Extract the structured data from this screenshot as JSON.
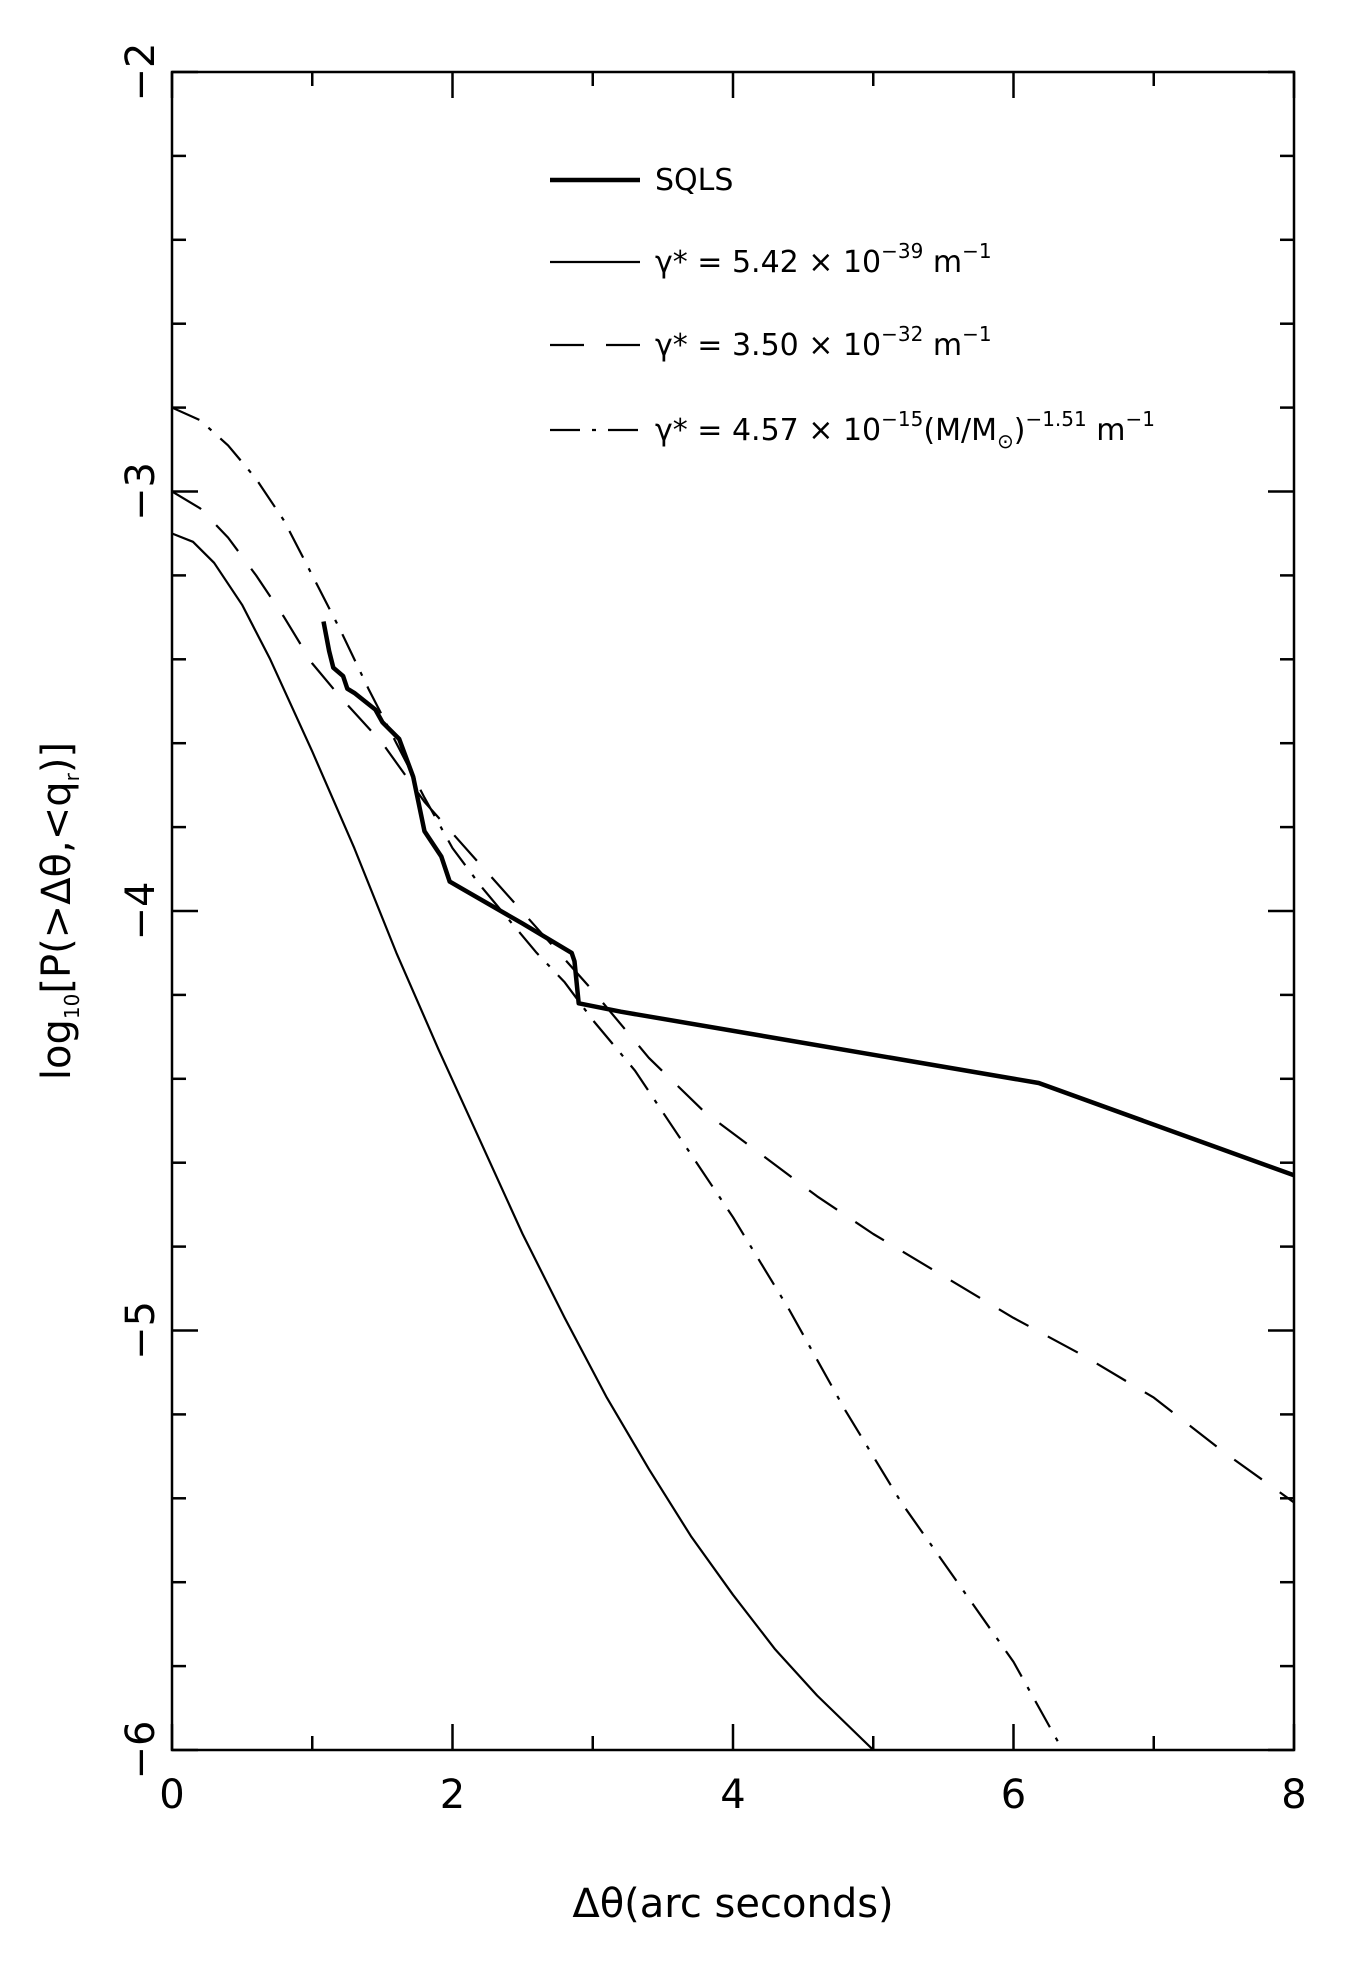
{
  "chart_data": {
    "type": "line",
    "title": "",
    "xlabel": "Δθ(arc seconds)",
    "ylabel": {
      "base": "log",
      "base_sub": "10",
      "arg_pre": "[P(>Δθ,<q",
      "arg_sub": "r",
      "arg_post": ")]"
    },
    "xlim": [
      0,
      8
    ],
    "ylim": [
      -6,
      -2
    ],
    "x_major_ticks": [
      0,
      2,
      4,
      6,
      8
    ],
    "x_tick_labels": [
      "0",
      "2",
      "4",
      "6",
      "8"
    ],
    "x_minor_step": 1,
    "y_major_ticks": [
      -2,
      -3,
      -4,
      -5,
      -6
    ],
    "y_tick_labels": [
      "−2",
      "−3",
      "−4",
      "−5",
      "−6"
    ],
    "y_minor_step": 0.2,
    "grid": false,
    "legend_position": "top-right",
    "legend": [
      {
        "key": "sqls",
        "style": "thick",
        "parts": [
          {
            "t": "SQLS"
          }
        ]
      },
      {
        "key": "g1",
        "style": "solid",
        "parts": [
          {
            "t": "γ* = 5.42 × 10"
          },
          {
            "t": "−39",
            "sup": true
          },
          {
            "t": " m"
          },
          {
            "t": "−1",
            "sup": true
          }
        ]
      },
      {
        "key": "g2",
        "style": "dashed",
        "parts": [
          {
            "t": "γ* = 3.50 × 10"
          },
          {
            "t": "−32",
            "sup": true
          },
          {
            "t": " m"
          },
          {
            "t": "−1",
            "sup": true
          }
        ]
      },
      {
        "key": "g3",
        "style": "dashdot",
        "parts": [
          {
            "t": "γ* = 4.57 × 10"
          },
          {
            "t": "−15",
            "sup": true
          },
          {
            "t": "(M/M"
          },
          {
            "t": "⊙",
            "sub": true
          },
          {
            "t": ")"
          },
          {
            "t": "−1.51",
            "sup": true
          },
          {
            "t": " m"
          },
          {
            "t": "−1",
            "sup": true
          }
        ]
      }
    ],
    "series": [
      {
        "key": "sqls",
        "name": "SQLS",
        "style": "thick",
        "points": [
          [
            1.08,
            -3.31
          ],
          [
            1.12,
            -3.38
          ],
          [
            1.15,
            -3.42
          ],
          [
            1.22,
            -3.44
          ],
          [
            1.25,
            -3.47
          ],
          [
            1.3,
            -3.48
          ],
          [
            1.45,
            -3.52
          ],
          [
            1.5,
            -3.55
          ],
          [
            1.62,
            -3.59
          ],
          [
            1.72,
            -3.68
          ],
          [
            1.8,
            -3.81
          ],
          [
            1.92,
            -3.87
          ],
          [
            1.98,
            -3.93
          ],
          [
            2.5,
            -4.03
          ],
          [
            2.85,
            -4.1
          ],
          [
            2.87,
            -4.12
          ],
          [
            2.9,
            -4.22
          ],
          [
            3.2,
            -4.24
          ],
          [
            6.18,
            -4.41
          ],
          [
            8.0,
            -4.63
          ]
        ]
      },
      {
        "key": "g1",
        "name": "γ* = 5.42 × 10^-39 m^-1",
        "style": "solid",
        "points": [
          [
            0,
            -3.1
          ],
          [
            0.15,
            -3.12
          ],
          [
            0.3,
            -3.17
          ],
          [
            0.5,
            -3.27
          ],
          [
            0.7,
            -3.4
          ],
          [
            1.0,
            -3.62
          ],
          [
            1.3,
            -3.85
          ],
          [
            1.6,
            -4.1
          ],
          [
            1.9,
            -4.33
          ],
          [
            2.2,
            -4.55
          ],
          [
            2.5,
            -4.77
          ],
          [
            2.8,
            -4.97
          ],
          [
            3.1,
            -5.16
          ],
          [
            3.4,
            -5.33
          ],
          [
            3.7,
            -5.49
          ],
          [
            4.0,
            -5.63
          ],
          [
            4.3,
            -5.76
          ],
          [
            4.6,
            -5.87
          ],
          [
            5.0,
            -6.0
          ]
        ]
      },
      {
        "key": "g2",
        "name": "γ* = 3.50 × 10^-32 m^-1",
        "style": "dashed",
        "points": [
          [
            0,
            -3.0
          ],
          [
            0.2,
            -3.04
          ],
          [
            0.4,
            -3.11
          ],
          [
            0.6,
            -3.2
          ],
          [
            0.8,
            -3.3
          ],
          [
            1.0,
            -3.41
          ],
          [
            1.2,
            -3.49
          ],
          [
            1.5,
            -3.6
          ],
          [
            1.8,
            -3.74
          ],
          [
            2.2,
            -3.89
          ],
          [
            2.6,
            -4.04
          ],
          [
            3.0,
            -4.19
          ],
          [
            3.4,
            -4.35
          ],
          [
            3.8,
            -4.48
          ],
          [
            4.2,
            -4.58
          ],
          [
            4.6,
            -4.68
          ],
          [
            5.0,
            -4.77
          ],
          [
            5.5,
            -4.87
          ],
          [
            6.0,
            -4.97
          ],
          [
            6.5,
            -5.06
          ],
          [
            7.0,
            -5.16
          ],
          [
            7.5,
            -5.29
          ],
          [
            8.0,
            -5.41
          ]
        ]
      },
      {
        "key": "g3",
        "name": "γ* = 4.57 × 10^-15 (M/M⊙)^-1.51 m^-1",
        "style": "dashdot",
        "points": [
          [
            0,
            -2.8
          ],
          [
            0.2,
            -2.83
          ],
          [
            0.4,
            -2.89
          ],
          [
            0.6,
            -2.97
          ],
          [
            0.8,
            -3.07
          ],
          [
            1.0,
            -3.2
          ],
          [
            1.2,
            -3.33
          ],
          [
            1.4,
            -3.47
          ],
          [
            1.6,
            -3.6
          ],
          [
            1.8,
            -3.73
          ],
          [
            2.0,
            -3.85
          ],
          [
            2.2,
            -3.94
          ],
          [
            2.4,
            -4.02
          ],
          [
            2.6,
            -4.1
          ],
          [
            2.8,
            -4.17
          ],
          [
            3.0,
            -4.26
          ],
          [
            3.3,
            -4.38
          ],
          [
            3.6,
            -4.53
          ],
          [
            4.0,
            -4.73
          ],
          [
            4.4,
            -4.95
          ],
          [
            4.8,
            -5.19
          ],
          [
            5.2,
            -5.41
          ],
          [
            5.6,
            -5.6
          ],
          [
            6.0,
            -5.79
          ],
          [
            6.35,
            -6.0
          ]
        ]
      }
    ]
  }
}
